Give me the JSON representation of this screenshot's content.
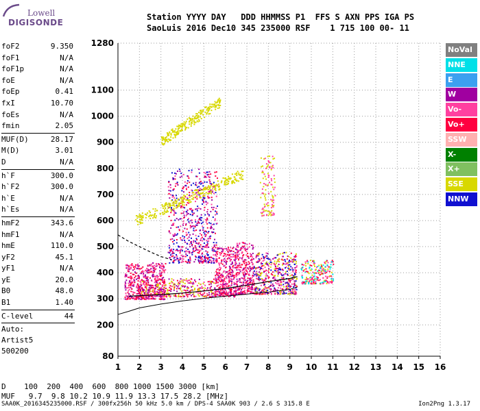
{
  "logo": {
    "top": "Lowell",
    "bottom": "DIGISONDE"
  },
  "header": {
    "line1": "Station YYYY DAY   DDD HHMMSS P1  FFS S AXN PPS IGA PS",
    "line2": "SaoLuis 2016 Dec10 345 235000 RSF    1 715 100 00- 11"
  },
  "params": {
    "group1": [
      {
        "name": "foF2",
        "value": "9.350"
      },
      {
        "name": "foF1",
        "value": "N/A"
      },
      {
        "name": "foF1p",
        "value": "N/A"
      },
      {
        "name": "foE",
        "value": "N/A"
      },
      {
        "name": "foEp",
        "value": "0.41"
      },
      {
        "name": "fxI",
        "value": "10.70"
      },
      {
        "name": "foEs",
        "value": "N/A"
      },
      {
        "name": "fmin",
        "value": "2.05"
      }
    ],
    "group2": [
      {
        "name": "MUF(D)",
        "value": "28.17"
      },
      {
        "name": "M(D)",
        "value": "3.01"
      },
      {
        "name": "D",
        "value": "N/A"
      }
    ],
    "group3": [
      {
        "name": "h`F",
        "value": "300.0"
      },
      {
        "name": "h`F2",
        "value": "300.0"
      },
      {
        "name": "h`E",
        "value": "N/A"
      },
      {
        "name": "h`Es",
        "value": "N/A"
      }
    ],
    "group4": [
      {
        "name": "hmF2",
        "value": "343.6"
      },
      {
        "name": "hmF1",
        "value": "N/A"
      },
      {
        "name": "hmE",
        "value": "110.0"
      },
      {
        "name": "yF2",
        "value": "45.1"
      },
      {
        "name": "yF1",
        "value": "N/A"
      },
      {
        "name": "yE",
        "value": "20.0"
      },
      {
        "name": "B0",
        "value": "48.0"
      },
      {
        "name": "B1",
        "value": "1.40"
      }
    ],
    "group5": [
      {
        "name": "C-level",
        "value": "44"
      }
    ],
    "auto_lines": [
      "Auto:",
      "Artist5",
      "500200"
    ]
  },
  "legend": [
    {
      "label": "NoVal",
      "color": "#808080"
    },
    {
      "label": "NNE",
      "color": "#00e0e8"
    },
    {
      "label": "E",
      "color": "#3ca0f0"
    },
    {
      "label": "W",
      "color": "#a000a0"
    },
    {
      "label": "Vo-",
      "color": "#ff40a0"
    },
    {
      "label": "Vo+",
      "color": "#ff0040"
    },
    {
      "label": "SSW",
      "color": "#ffb0b0"
    },
    {
      "label": "X-",
      "color": "#008000"
    },
    {
      "label": "X+",
      "color": "#80c060"
    },
    {
      "label": "SSE",
      "color": "#d8d800"
    },
    {
      "label": "NNW",
      "color": "#1010d0"
    }
  ],
  "bottom": {
    "d_line": "D    100  200  400  600  800 1000 1500 3000 [km]",
    "muf_line": "MUF   9.7  9.8 10.2 10.9 11.9 13.3 17.5 28.2 [MHz]",
    "footer_left": "SAA0K_2016345235000.RSF / 300fx256h 50 kHz 5.0 km / DPS-4 SAA0K 903 / 2.6 S 315.8 E",
    "footer_right": "Ion2Png 1.3.17"
  },
  "chart_data": {
    "type": "scatter",
    "xlim": [
      1,
      16
    ],
    "ylim": [
      80,
      1280
    ],
    "x_ticks": [
      1,
      2,
      3,
      4,
      5,
      6,
      7,
      8,
      9,
      10,
      11,
      12,
      13,
      14,
      15,
      16
    ],
    "y_ticks": [
      80,
      200,
      300,
      400,
      500,
      600,
      700,
      800,
      900,
      1000,
      1100,
      1280
    ],
    "grid": true,
    "profile_curve": [
      [
        1.0,
        240
      ],
      [
        1.5,
        252
      ],
      [
        2,
        265
      ],
      [
        3,
        280
      ],
      [
        4,
        292
      ],
      [
        5,
        302
      ],
      [
        6,
        310
      ],
      [
        7,
        318
      ],
      [
        8,
        326
      ],
      [
        9,
        336
      ],
      [
        9.35,
        345
      ]
    ],
    "trace_solid": [
      [
        1.5,
        310
      ],
      [
        2,
        312
      ],
      [
        3,
        316
      ],
      [
        4,
        322
      ],
      [
        5,
        330
      ],
      [
        6,
        340
      ],
      [
        7,
        352
      ],
      [
        8,
        366
      ],
      [
        9,
        378
      ],
      [
        9.35,
        385
      ]
    ],
    "trace_dashed": [
      [
        1.0,
        545
      ],
      [
        1.5,
        520
      ],
      [
        2,
        500
      ],
      [
        2.5,
        480
      ],
      [
        3,
        462
      ],
      [
        3.5,
        450
      ]
    ],
    "clusters": [
      {
        "x": [
          1.3,
          3.2
        ],
        "y": [
          300,
          440
        ],
        "n": 500,
        "palette": [
          "#ff0040",
          "#ff40a0",
          "#a000a0"
        ]
      },
      {
        "x": [
          2.0,
          5.5
        ],
        "y": [
          310,
          380
        ],
        "n": 350,
        "palette": [
          "#ff0040",
          "#d8d800",
          "#ff40a0",
          "#a000a0"
        ]
      },
      {
        "x": [
          3.3,
          5.6
        ],
        "y": [
          440,
          800
        ],
        "n": 650,
        "palette": [
          "#a000a0",
          "#ff40a0",
          "#ff0040",
          "#1010d0"
        ]
      },
      {
        "x": [
          5.5,
          6.5
        ],
        "y": [
          310,
          500
        ],
        "n": 400,
        "palette": [
          "#ff0040",
          "#ff40a0",
          "#a000a0"
        ]
      },
      {
        "x": [
          6.5,
          7.3
        ],
        "y": [
          320,
          520
        ],
        "n": 300,
        "palette": [
          "#ff0040",
          "#ff40a0",
          "#a000a0"
        ]
      },
      {
        "x": [
          7.3,
          9.3
        ],
        "y": [
          320,
          480
        ],
        "n": 500,
        "palette": [
          "#ff0040",
          "#ff40a0",
          "#a000a0",
          "#d8d800",
          "#1010d0"
        ]
      },
      {
        "x": [
          9.5,
          11.0
        ],
        "y": [
          360,
          450
        ],
        "n": 220,
        "palette": [
          "#ff0040",
          "#ff40a0",
          "#d8d800",
          "#00e0e8"
        ]
      },
      {
        "x": [
          7.6,
          8.3
        ],
        "y": [
          620,
          850
        ],
        "n": 120,
        "palette": [
          "#d8d800",
          "#ff40a0"
        ]
      }
    ],
    "yellow_traces": [
      {
        "x": [
          3.0,
          5.8
        ],
        "y": [
          905,
          1060
        ],
        "n": 220
      },
      {
        "x": [
          1.8,
          6.8
        ],
        "y": [
          600,
          780
        ],
        "n": 300
      }
    ]
  }
}
